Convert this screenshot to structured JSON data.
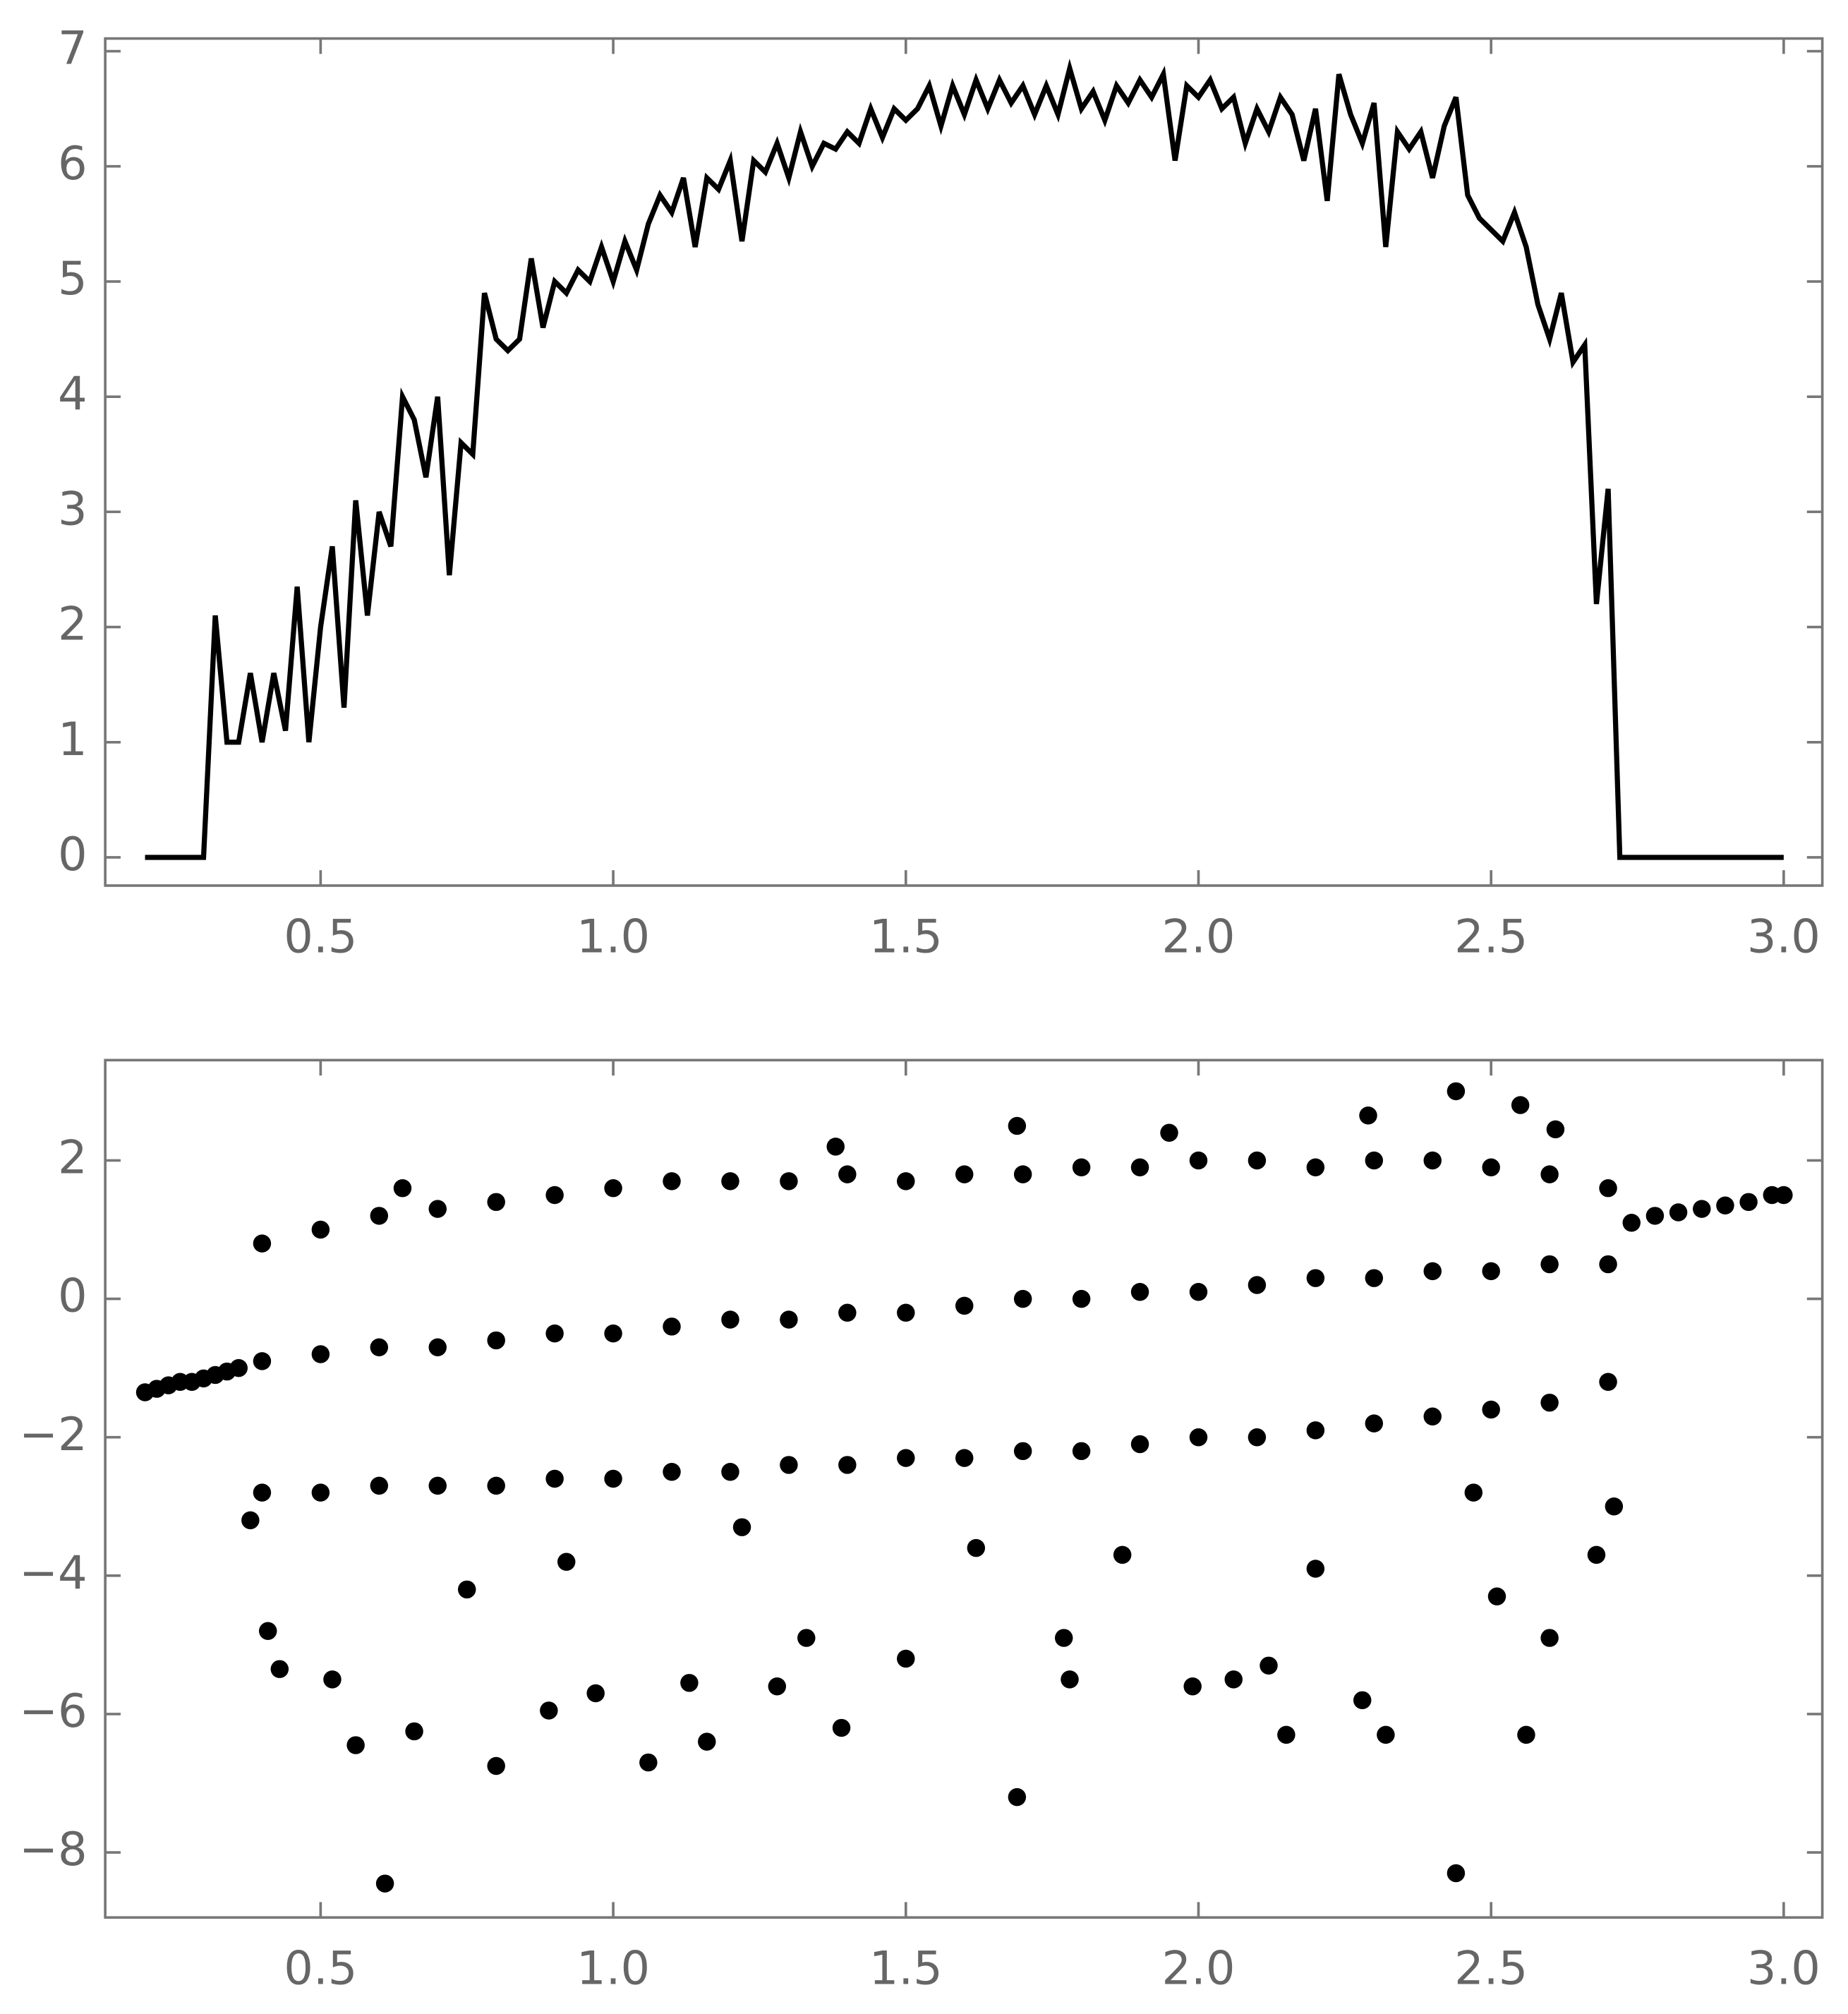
{
  "chart_data": [
    {
      "type": "line",
      "color": "#000000",
      "xlim": [
        0.132,
        3.066
      ],
      "ylim": [
        -0.245,
        7.11
      ],
      "xticks": [
        0.5,
        {
          "value": 1,
          "label": "1.0"
        },
        1.5,
        {
          "value": 2,
          "label": "2.0"
        },
        2.5,
        {
          "value": 3,
          "label": "3.0"
        }
      ],
      "yticks": [
        0,
        1,
        2,
        3,
        4,
        5,
        6,
        7
      ],
      "x": [
        0.2,
        0.22,
        0.24,
        0.26,
        0.28,
        0.3,
        0.32,
        0.34,
        0.36,
        0.38,
        0.4,
        0.42,
        0.44,
        0.46,
        0.48,
        0.5,
        0.52,
        0.54,
        0.56,
        0.58,
        0.6,
        0.62,
        0.64,
        0.66,
        0.68,
        0.7,
        0.72,
        0.74,
        0.76,
        0.78,
        0.8,
        0.82,
        0.84,
        0.86,
        0.88,
        0.9,
        0.92,
        0.94,
        0.96,
        0.98,
        1.0,
        1.02,
        1.04,
        1.06,
        1.08,
        1.1,
        1.12,
        1.14,
        1.16,
        1.18,
        1.2,
        1.22,
        1.24,
        1.26,
        1.28,
        1.3,
        1.32,
        1.34,
        1.36,
        1.38,
        1.4,
        1.42,
        1.44,
        1.46,
        1.48,
        1.5,
        1.52,
        1.54,
        1.56,
        1.58,
        1.6,
        1.62,
        1.64,
        1.66,
        1.68,
        1.7,
        1.72,
        1.74,
        1.76,
        1.78,
        1.8,
        1.82,
        1.84,
        1.86,
        1.88,
        1.9,
        1.92,
        1.94,
        1.96,
        1.98,
        2.0,
        2.02,
        2.04,
        2.06,
        2.08,
        2.1,
        2.12,
        2.14,
        2.16,
        2.18,
        2.2,
        2.22,
        2.24,
        2.26,
        2.28,
        2.3,
        2.32,
        2.34,
        2.36,
        2.38,
        2.4,
        2.42,
        2.44,
        2.46,
        2.48,
        2.5,
        2.52,
        2.54,
        2.56,
        2.58,
        2.6,
        2.62,
        2.64,
        2.66,
        2.68,
        2.7,
        2.72,
        2.74,
        2.76,
        2.78,
        2.8,
        2.82,
        2.84,
        2.86,
        2.88,
        2.9,
        2.92,
        2.94,
        2.96,
        2.98,
        3.0
      ],
      "values": [
        0,
        0,
        0,
        0,
        0,
        0,
        2.1,
        1,
        1,
        1.6,
        1,
        1.6,
        1.1,
        2.35,
        1,
        2,
        2.7,
        1.3,
        3.1,
        2.1,
        3,
        2.7,
        4,
        3.8,
        3.3,
        4,
        2.45,
        3.6,
        3.5,
        4.9,
        4.5,
        4.4,
        4.5,
        5.2,
        4.6,
        5,
        4.9,
        5.1,
        5,
        5.3,
        5,
        5.35,
        5.1,
        5.5,
        5.75,
        5.6,
        5.9,
        5.3,
        5.9,
        5.8,
        6.05,
        5.35,
        6.05,
        5.95,
        6.2,
        5.9,
        6.3,
        6,
        6.2,
        6.15,
        6.3,
        6.2,
        6.5,
        6.25,
        6.5,
        6.4,
        6.5,
        6.7,
        6.35,
        6.7,
        6.45,
        6.75,
        6.5,
        6.75,
        6.55,
        6.7,
        6.45,
        6.7,
        6.45,
        6.85,
        6.5,
        6.65,
        6.4,
        6.7,
        6.55,
        6.75,
        6.6,
        6.8,
        6.05,
        6.7,
        6.6,
        6.75,
        6.5,
        6.6,
        6.2,
        6.5,
        6.3,
        6.6,
        6.45,
        6.05,
        6.5,
        5.7,
        6.8,
        6.45,
        6.2,
        6.55,
        5.3,
        6.3,
        6.15,
        6.3,
        5.9,
        6.35,
        6.6,
        5.75,
        5.55,
        5.45,
        5.35,
        5.6,
        5.3,
        4.8,
        4.5,
        4.9,
        4.3,
        4.45,
        2.2,
        3.2,
        0,
        0,
        0,
        0,
        0,
        0,
        0,
        0,
        0,
        0,
        0,
        0,
        0,
        0,
        0
      ]
    },
    {
      "type": "scatter",
      "color": "#000000",
      "xlim": [
        0.132,
        3.066
      ],
      "ylim": [
        -8.94,
        3.45
      ],
      "xticks": [
        0.5,
        {
          "value": 1,
          "label": "1.0"
        },
        1.5,
        {
          "value": 2,
          "label": "2.0"
        },
        2.5,
        {
          "value": 3,
          "label": "3.0"
        }
      ],
      "yticks": [
        {
          "value": -8,
          "label": "−8"
        },
        {
          "value": -6,
          "label": "−6"
        },
        {
          "value": -4,
          "label": "−4"
        },
        {
          "value": -2,
          "label": "−2"
        },
        0,
        2
      ],
      "x": [
        0.2,
        0.22,
        0.24,
        0.26,
        0.28,
        0.3,
        0.32,
        0.34,
        0.36,
        2.74,
        2.78,
        2.82,
        2.86,
        2.9,
        2.94,
        2.98,
        3.0,
        0.4,
        0.5,
        0.6,
        0.7,
        0.8,
        0.9,
        1.0,
        1.1,
        1.2,
        1.3,
        1.4,
        1.5,
        1.6,
        1.7,
        1.8,
        1.9,
        2.0,
        2.1,
        2.2,
        2.3,
        2.4,
        2.5,
        2.6,
        2.7,
        0.4,
        0.5,
        0.6,
        0.7,
        0.8,
        0.9,
        1.0,
        1.1,
        1.2,
        1.3,
        1.4,
        1.5,
        1.6,
        1.7,
        1.8,
        1.9,
        2.0,
        2.1,
        2.2,
        2.3,
        2.4,
        2.5,
        2.6,
        2.7,
        0.4,
        0.5,
        0.6,
        0.7,
        0.8,
        0.9,
        1.0,
        1.1,
        1.2,
        1.3,
        1.4,
        1.5,
        1.6,
        1.7,
        1.8,
        1.9,
        2.0,
        2.1,
        2.2,
        2.3,
        2.4,
        2.5,
        2.6,
        2.7,
        0.61,
        2.44,
        1.69,
        0.8,
        0.56,
        1.06,
        1.16,
        2.15,
        2.32,
        2.56,
        1.39,
        0.66,
        0.89,
        0.97,
        1.28,
        1.78,
        2.06,
        2.28,
        0.43,
        1.5,
        1.99,
        2.12,
        0.52,
        1.13,
        2.6,
        0.75,
        1.33,
        1.77,
        2.51,
        2.68,
        0.41,
        1.62,
        2.2,
        0.92,
        1.87,
        2.47,
        2.71,
        0.38,
        1.22,
        2.55,
        2.44,
        2.29,
        1.69,
        2.61,
        0.64,
        1.38,
        1.95
      ],
      "values": [
        -1.35,
        -1.3,
        -1.25,
        -1.2,
        -1.2,
        -1.15,
        -1.1,
        -1.05,
        -1.0,
        1.1,
        1.2,
        1.25,
        1.3,
        1.35,
        1.4,
        1.5,
        1.5,
        0.8,
        1.0,
        1.2,
        1.3,
        1.4,
        1.5,
        1.6,
        1.7,
        1.7,
        1.7,
        1.8,
        1.7,
        1.8,
        1.8,
        1.9,
        1.9,
        2.0,
        2.0,
        1.9,
        2.0,
        2.0,
        1.9,
        1.8,
        1.6,
        -0.9,
        -0.8,
        -0.7,
        -0.7,
        -0.6,
        -0.5,
        -0.5,
        -0.4,
        -0.3,
        -0.3,
        -0.2,
        -0.2,
        -0.1,
        0,
        0,
        0.1,
        0.1,
        0.2,
        0.3,
        0.3,
        0.4,
        0.4,
        0.5,
        0.5,
        -2.8,
        -2.8,
        -2.7,
        -2.7,
        -2.7,
        -2.6,
        -2.6,
        -2.5,
        -2.5,
        -2.4,
        -2.4,
        -2.3,
        -2.3,
        -2.2,
        -2.2,
        -2.1,
        -2.0,
        -2.0,
        -1.9,
        -1.8,
        -1.7,
        -1.6,
        -1.5,
        -1.2,
        -8.45,
        -8.3,
        -7.2,
        -6.75,
        -6.45,
        -6.7,
        -6.4,
        -6.3,
        -6.3,
        -6.3,
        -6.2,
        -6.25,
        -5.95,
        -5.7,
        -5.6,
        -5.5,
        -5.5,
        -5.8,
        -5.35,
        -5.2,
        -5.6,
        -5.3,
        -5.5,
        -5.55,
        -4.9,
        -4.2,
        -4.9,
        -4.9,
        -4.3,
        -3.7,
        -4.8,
        -3.6,
        -3.9,
        -3.8,
        -3.7,
        -2.8,
        -3.0,
        -3.2,
        -3.3,
        2.8,
        3.0,
        2.65,
        2.5,
        2.45,
        1.6,
        2.2,
        2.4
      ]
    }
  ]
}
